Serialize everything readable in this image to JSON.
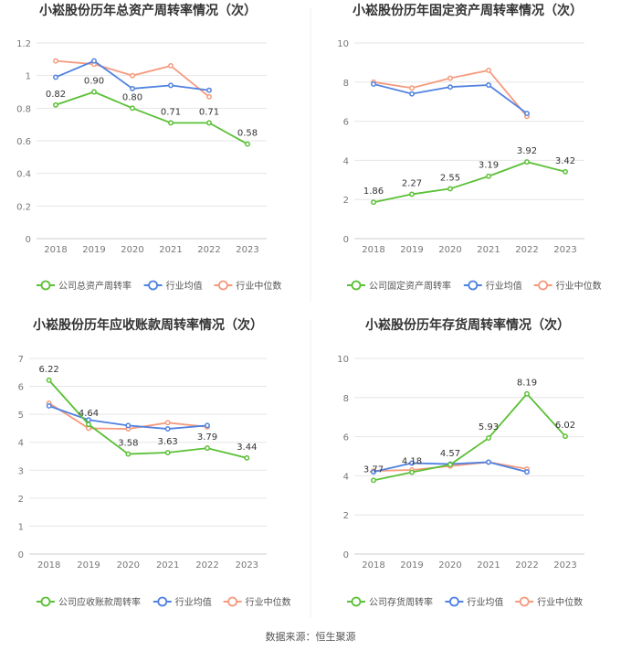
{
  "colors": {
    "company": "#5ac035",
    "industry_avg": "#4f81e0",
    "industry_median": "#f59a7e",
    "grid": "#e6e6e6",
    "axis_text": "#777777",
    "title": "#333333"
  },
  "source": "数据来源：恒生聚源",
  "chart_data": [
    {
      "type": "line",
      "title": "小崧股份历年总资产周转率情况（次）",
      "categories": [
        "2018",
        "2019",
        "2020",
        "2021",
        "2022",
        "2023"
      ],
      "ylim": [
        0,
        1.2
      ],
      "yticks": [
        "0",
        "0.2",
        "0.4",
        "0.6",
        "0.8",
        "1",
        "1.2"
      ],
      "ytick_values": [
        0,
        0.2,
        0.4,
        0.6,
        0.8,
        1,
        1.2
      ],
      "legend_position": "bottom",
      "series": [
        {
          "name": "公司总资产周转率",
          "key": "company",
          "values": [
            0.82,
            0.9,
            0.8,
            0.71,
            0.71,
            0.58
          ],
          "labels": [
            "0.82",
            "0.90",
            "0.80",
            "0.71",
            "0.71",
            "0.58"
          ]
        },
        {
          "name": "行业均值",
          "key": "industry_avg",
          "values": [
            0.99,
            1.09,
            0.92,
            0.94,
            0.91,
            null
          ]
        },
        {
          "name": "行业中位数",
          "key": "industry_median",
          "values": [
            1.09,
            1.07,
            1.0,
            1.06,
            0.87,
            null
          ]
        }
      ]
    },
    {
      "type": "line",
      "title": "小崧股份历年固定资产周转率情况（次）",
      "categories": [
        "2018",
        "2019",
        "2020",
        "2021",
        "2022",
        "2023"
      ],
      "ylim": [
        0,
        10
      ],
      "yticks": [
        "0",
        "2",
        "4",
        "6",
        "8",
        "10"
      ],
      "ytick_values": [
        0,
        2,
        4,
        6,
        8,
        10
      ],
      "legend_position": "bottom",
      "series": [
        {
          "name": "公司固定资产周转率",
          "key": "company",
          "values": [
            1.86,
            2.27,
            2.55,
            3.19,
            3.92,
            3.42
          ],
          "labels": [
            "1.86",
            "2.27",
            "2.55",
            "3.19",
            "3.92",
            "3.42"
          ]
        },
        {
          "name": "行业均值",
          "key": "industry_avg",
          "values": [
            7.9,
            7.4,
            7.75,
            7.85,
            6.4,
            null
          ]
        },
        {
          "name": "行业中位数",
          "key": "industry_median",
          "values": [
            8.0,
            7.7,
            8.2,
            8.6,
            6.25,
            null
          ]
        }
      ]
    },
    {
      "type": "line",
      "title": "小崧股份历年应收账款周转率情况（次）",
      "categories": [
        "2018",
        "2019",
        "2020",
        "2021",
        "2022",
        "2023"
      ],
      "ylim": [
        0,
        7
      ],
      "yticks": [
        "0",
        "1",
        "2",
        "3",
        "4",
        "5",
        "6",
        "7"
      ],
      "ytick_values": [
        0,
        1,
        2,
        3,
        4,
        5,
        6,
        7
      ],
      "legend_position": "bottom",
      "series": [
        {
          "name": "公司应收账款周转率",
          "key": "company",
          "values": [
            6.22,
            4.64,
            3.58,
            3.63,
            3.79,
            3.44
          ],
          "labels": [
            "6.22",
            "4.64",
            "3.58",
            "3.63",
            "3.79",
            "3.44"
          ]
        },
        {
          "name": "行业均值",
          "key": "industry_avg",
          "values": [
            5.3,
            4.8,
            4.6,
            4.48,
            4.6,
            null
          ]
        },
        {
          "name": "行业中位数",
          "key": "industry_median",
          "values": [
            5.4,
            4.5,
            4.48,
            4.7,
            4.55,
            null
          ]
        }
      ]
    },
    {
      "type": "line",
      "title": "小崧股份历年存货周转率情况（次）",
      "categories": [
        "2018",
        "2019",
        "2020",
        "2021",
        "2022",
        "2023"
      ],
      "ylim": [
        0,
        10
      ],
      "yticks": [
        "0",
        "2",
        "4",
        "6",
        "8",
        "10"
      ],
      "ytick_values": [
        0,
        2,
        4,
        6,
        8,
        10
      ],
      "legend_position": "bottom",
      "series": [
        {
          "name": "公司存货周转率",
          "key": "company",
          "values": [
            3.77,
            4.18,
            4.57,
            5.93,
            8.19,
            6.02
          ],
          "labels": [
            "3.77",
            "4.18",
            "4.57",
            "5.93",
            "8.19",
            "6.02"
          ]
        },
        {
          "name": "行业均值",
          "key": "industry_avg",
          "values": [
            4.2,
            4.65,
            4.6,
            4.7,
            4.2,
            null
          ]
        },
        {
          "name": "行业中位数",
          "key": "industry_median",
          "values": [
            4.25,
            4.3,
            4.5,
            4.7,
            4.35,
            null
          ]
        }
      ]
    }
  ]
}
